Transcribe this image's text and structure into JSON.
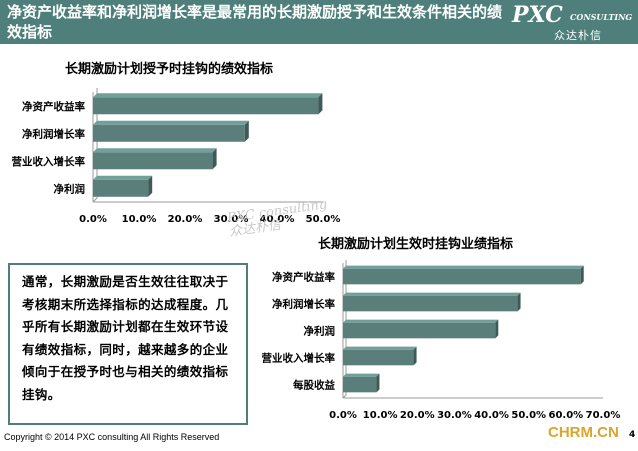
{
  "header": {
    "title": "净资产收益率和净利润增长率是最常用的长期激励授予和生效条件相关的绩效指标",
    "logo_main": "PXC",
    "logo_sub": "CONSULTING",
    "logo_cn": "众达朴信"
  },
  "chart_data": [
    {
      "type": "bar",
      "orientation": "horizontal",
      "title": "长期激励计划授予时挂钩的绩效指标",
      "categories": [
        "净资产收益率",
        "净利润增长率",
        "营业收入增长率",
        "净利润"
      ],
      "values": [
        0.49,
        0.33,
        0.26,
        0.12
      ],
      "xlim": [
        0,
        0.5
      ],
      "xticks": [
        "0.0%",
        "10.0%",
        "20.0%",
        "30.0%",
        "40.0%",
        "50.0%"
      ],
      "bar_color": "#5a7f7b"
    },
    {
      "type": "bar",
      "orientation": "horizontal",
      "title": "长期激励计划生效时挂钩业绩指标",
      "categories": [
        "净资产收益率",
        "净利润增长率",
        "净利润",
        "营业收入增长率",
        "每股收益"
      ],
      "values": [
        0.64,
        0.47,
        0.41,
        0.19,
        0.09
      ],
      "xlim": [
        0,
        0.7
      ],
      "xticks": [
        "0.0%",
        "10.0%",
        "20.0%",
        "30.0%",
        "40.0%",
        "50.0%",
        "60.0%",
        "70.0%"
      ],
      "bar_color": "#5a7f7b"
    }
  ],
  "textbox": {
    "text": "通常，长期激励是否生效往往取决于考核期末所选择指标的达成程度。几乎所有长期激励计划都在生效环节设有绩效指标，同时，越来越多的企业倾向于在授予时也与相关的绩效指标挂钩。"
  },
  "watermark": {
    "line1": "PXC consulting",
    "line2": "众达朴信"
  },
  "footer": {
    "copyright": "Copyright © 2014 PXC consulting All Rights Reserved",
    "site": "CHRM.CN",
    "page": "4"
  }
}
